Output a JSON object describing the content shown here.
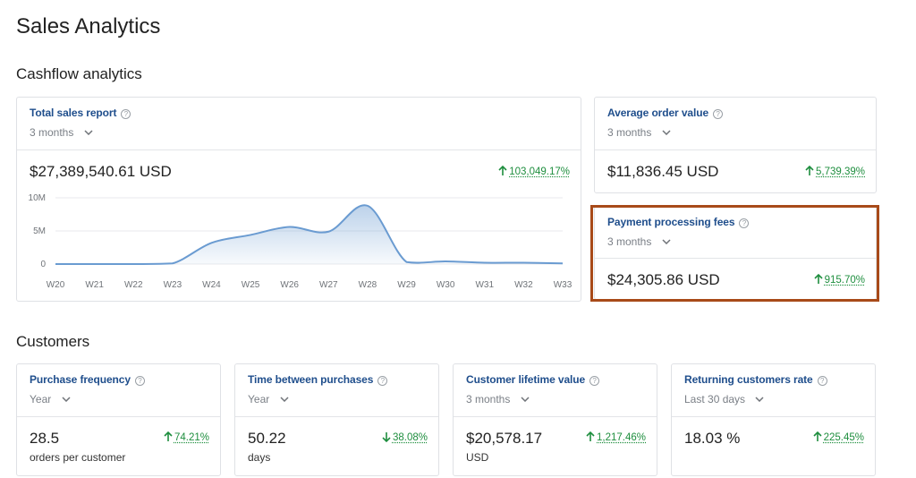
{
  "page": {
    "title": "Sales Analytics"
  },
  "sections": {
    "cashflow": "Cashflow analytics",
    "customers": "Customers"
  },
  "cards": {
    "total_sales": {
      "title": "Total sales report",
      "period": "3 months",
      "value": "$27,389,540.61 USD",
      "trend": "103,049.17%",
      "trend_dir": "up"
    },
    "avg_order": {
      "title": "Average order value",
      "period": "3 months",
      "value": "$11,836.45 USD",
      "trend": "5,739.39%",
      "trend_dir": "up"
    },
    "payment_fees": {
      "title": "Payment processing fees",
      "period": "3 months",
      "value": "$24,305.86 USD",
      "trend": "915.70%",
      "trend_dir": "up"
    },
    "purchase_freq": {
      "title": "Purchase frequency",
      "period": "Year",
      "value": "28.5",
      "sub": "orders per customer",
      "trend": "74.21%",
      "trend_dir": "up"
    },
    "time_between": {
      "title": "Time between purchases",
      "period": "Year",
      "value": "50.22",
      "sub": "days",
      "trend": "38.08%",
      "trend_dir": "down"
    },
    "lifetime_value": {
      "title": "Customer lifetime value",
      "period": "3 months",
      "value": "$20,578.17",
      "sub": "USD",
      "trend": "1,217.46%",
      "trend_dir": "up"
    },
    "returning_rate": {
      "title": "Returning customers rate",
      "period": "Last 30 days",
      "value": "18.03 %",
      "trend": "225.45%",
      "trend_dir": "up"
    }
  },
  "colors": {
    "accent_title": "#1f4e8c",
    "trend_green": "#1e8e3e",
    "line": "#6a9bd1",
    "highlight": "#a84a19"
  },
  "chart_data": {
    "type": "area",
    "categories": [
      "W20",
      "W21",
      "W22",
      "W23",
      "W24",
      "W25",
      "W26",
      "W27",
      "W28",
      "W29",
      "W30",
      "W31",
      "W32",
      "W33"
    ],
    "values": [
      0,
      0,
      0,
      0.1,
      3.2,
      4.4,
      5.6,
      4.9,
      8.8,
      0.3,
      0.4,
      0.2,
      0.2,
      0.1
    ],
    "yticks": [
      "10M",
      "5M",
      "0"
    ],
    "ytick_values": [
      10,
      5,
      0
    ],
    "ylim": [
      0,
      10
    ],
    "yunit": "M",
    "grid": true,
    "title": "",
    "xlabel": "",
    "ylabel": ""
  }
}
